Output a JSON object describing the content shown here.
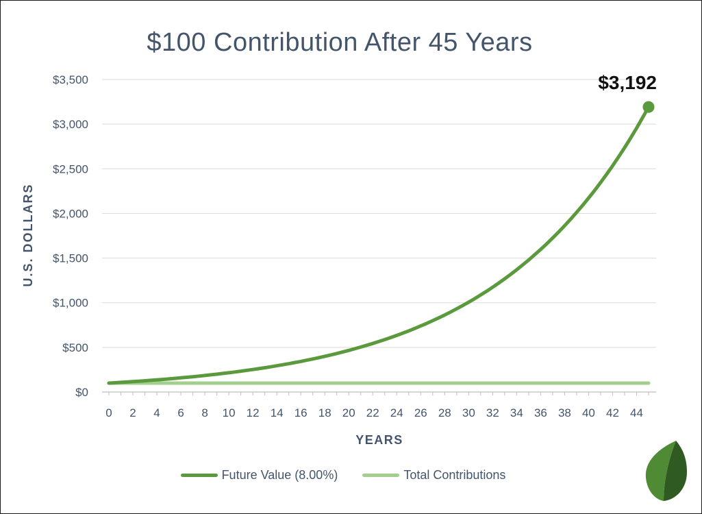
{
  "chart_data": {
    "type": "line",
    "title": "$100 Contribution After 45 Years",
    "xlabel": "YEARS",
    "ylabel": "U.S. DOLLARS",
    "xlim": [
      0,
      45
    ],
    "ylim": [
      0,
      3500
    ],
    "x_ticks": [
      0,
      2,
      4,
      6,
      8,
      10,
      12,
      14,
      16,
      18,
      20,
      22,
      24,
      26,
      28,
      30,
      32,
      34,
      36,
      38,
      40,
      42,
      44
    ],
    "y_ticks": [
      0,
      500,
      1000,
      1500,
      2000,
      2500,
      3000,
      3500
    ],
    "y_tick_labels": [
      "$0",
      "$500",
      "$1,000",
      "$1,500",
      "$2,000",
      "$2,500",
      "$3,000",
      "$3,500"
    ],
    "grid": true,
    "legend_position": "bottom",
    "x": [
      0,
      3,
      6,
      9,
      12,
      15,
      18,
      21,
      24,
      27,
      30,
      33,
      36,
      39,
      42,
      45
    ],
    "series": [
      {
        "name": "Future Value (8.00%)",
        "color": "#5a9a3c",
        "values": [
          100,
          126,
          159,
          200,
          252,
          317,
          400,
          503,
          634,
          799,
          1006,
          1267,
          1597,
          2011,
          2534,
          3192
        ]
      },
      {
        "name": "Total Contributions",
        "color": "#a3cf8c",
        "values": [
          100,
          100,
          100,
          100,
          100,
          100,
          100,
          100,
          100,
          100,
          100,
          100,
          100,
          100,
          100,
          100
        ]
      }
    ],
    "annotation": {
      "text": "$3,192",
      "x": 45,
      "y": 3192
    }
  },
  "brand": {
    "leaf_colors": [
      "#4f8a35",
      "#2f5a22"
    ]
  }
}
